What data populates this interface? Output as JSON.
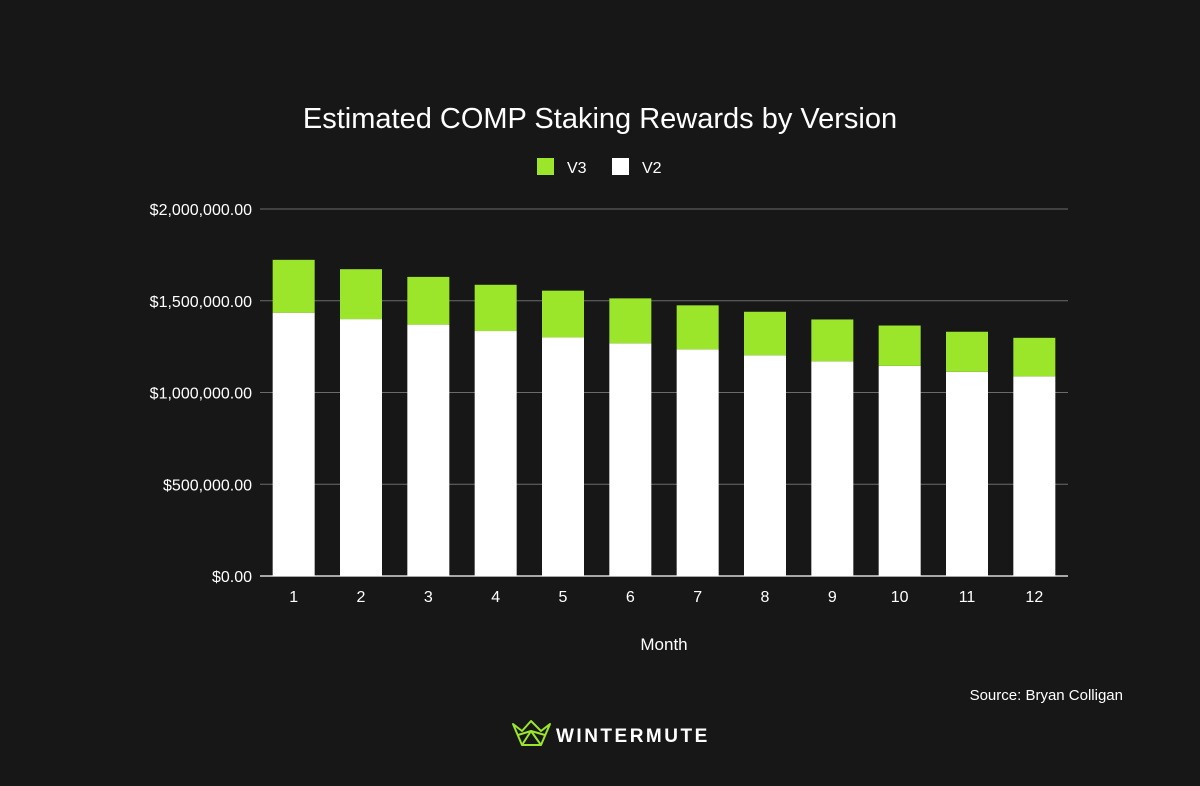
{
  "colors": {
    "background": "#171717",
    "v3": "#9be52b",
    "v2": "#ffffff",
    "grid": "#6b6b6b",
    "text": "#ffffff"
  },
  "source": "Source: Bryan Colligan",
  "brand": {
    "name": "WINTERMUTE",
    "logo_icon": "wintermute-logo-icon"
  },
  "chart_data": {
    "type": "bar",
    "stacked": true,
    "title": "Estimated COMP Staking Rewards by Version",
    "xlabel": "Month",
    "ylabel": "",
    "categories": [
      "1",
      "2",
      "3",
      "4",
      "5",
      "6",
      "7",
      "8",
      "9",
      "10",
      "11",
      "12"
    ],
    "series": [
      {
        "name": "V2",
        "color": "#ffffff",
        "values": [
          1435000,
          1400000,
          1370000,
          1335000,
          1300000,
          1268000,
          1235000,
          1203000,
          1170000,
          1145000,
          1113000,
          1088000
        ]
      },
      {
        "name": "V3",
        "color": "#9be52b",
        "values": [
          288000,
          272000,
          260000,
          252000,
          255000,
          245000,
          240000,
          237000,
          228000,
          220000,
          218000,
          210000
        ]
      }
    ],
    "legend": [
      {
        "name": "V3",
        "color": "#9be52b"
      },
      {
        "name": "V2",
        "color": "#ffffff"
      }
    ],
    "legend_position": "top-center",
    "ylim": [
      0,
      2000000
    ],
    "yticks": [
      0,
      500000,
      1000000,
      1500000,
      2000000
    ],
    "ytick_labels": [
      "$0.00",
      "$500,000.00",
      "$1,000,000.00",
      "$1,500,000.00",
      "$2,000,000.00"
    ],
    "grid": true
  }
}
